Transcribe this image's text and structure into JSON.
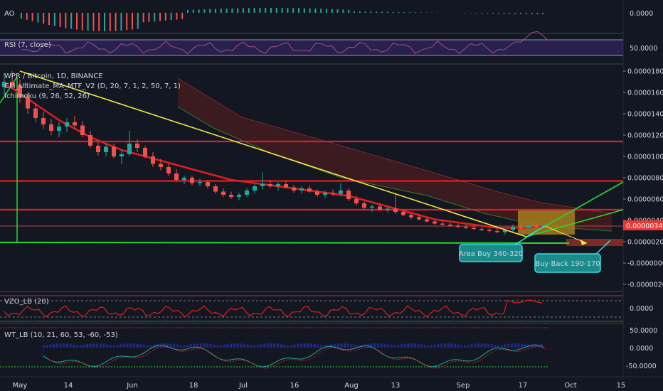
{
  "chart_data": {
    "type": "candlestick",
    "symbol_label": "WPR / Bitcoin, 1D, BINANCE",
    "indicators": [
      "CM_Ultimate_MA_MTF_V2 (D, 20, 7, 1, 2, 50, 7, 1)",
      "Ichimoku (9, 26, 52, 26)"
    ],
    "x_ticks": [
      "May",
      "14",
      "Jun",
      "18",
      "Jul",
      "16",
      "Aug",
      "13",
      "Sep",
      "17",
      "Oct",
      "15"
    ],
    "y_ticks": [
      "0.00001800",
      "0.00001600",
      "0.00001400",
      "0.00001200",
      "0.00001000",
      "0.00000800",
      "0.00000600",
      "0.00000400",
      "0.00000200",
      "-0.00000000",
      "-0.00000200"
    ],
    "ylim": [
      -2e-06,
      1.81e-05
    ],
    "last_price": "0.00000345",
    "support_resistance_levels": [
      1.14e-05,
      7.7e-06,
      5e-06,
      2e-06
    ],
    "ohlc": [
      [
        1.65e-05,
        1.78e-05,
        1.58e-05,
        1.7e-05
      ],
      [
        1.7e-05,
        1.8e-05,
        1.63e-05,
        1.67e-05
      ],
      [
        1.67e-05,
        1.72e-05,
        1.5e-05,
        1.55e-05
      ],
      [
        1.55e-05,
        1.6e-05,
        1.4e-05,
        1.45e-05
      ],
      [
        1.45e-05,
        1.5e-05,
        1.32e-05,
        1.36e-05
      ],
      [
        1.36e-05,
        1.42e-05,
        1.26e-05,
        1.3e-05
      ],
      [
        1.3e-05,
        1.35e-05,
        1.2e-05,
        1.24e-05
      ],
      [
        1.24e-05,
        1.32e-05,
        1.18e-05,
        1.28e-05
      ],
      [
        1.28e-05,
        1.36e-05,
        1.23e-05,
        1.32e-05
      ],
      [
        1.32e-05,
        1.38e-05,
        1.26e-05,
        1.29e-05
      ],
      [
        1.29e-05,
        1.33e-05,
        1.18e-05,
        1.2e-05
      ],
      [
        1.2e-05,
        1.24e-05,
        1.08e-05,
        1.1e-05
      ],
      [
        1.1e-05,
        1.14e-05,
        1.01e-05,
        1.04e-05
      ],
      [
        1.04e-05,
        1.12e-05,
        1e-05,
        1.09e-05
      ],
      [
        1.09e-05,
        1.12e-05,
        9.8e-06,
        1e-05
      ],
      [
        1e-05,
        1.06e-05,
        9.3e-06,
        1.02e-05
      ],
      [
        1.02e-05,
        1.24e-05,
        1e-05,
        1.12e-05
      ],
      [
        1.12e-05,
        1.16e-05,
        1.04e-05,
        1.08e-05
      ],
      [
        1.08e-05,
        1.1e-05,
        9.8e-06,
        1e-05
      ],
      [
        1e-05,
        1.04e-05,
        9e-06,
        9.3e-06
      ],
      [
        9.3e-06,
        9.8e-06,
        8.7e-06,
        9e-06
      ],
      [
        9e-06,
        9.3e-06,
        8.2e-06,
        8.4e-06
      ],
      [
        8.4e-06,
        8.8e-06,
        7.6e-06,
        7.8e-06
      ],
      [
        7.8e-06,
        8.2e-06,
        7.4e-06,
        8e-06
      ],
      [
        8e-06,
        8.2e-06,
        7.3e-06,
        7.5e-06
      ],
      [
        7.5e-06,
        7.9e-06,
        7.2e-06,
        7.6e-06
      ],
      [
        7.6e-06,
        7.8e-06,
        7e-06,
        7.2e-06
      ],
      [
        7.2e-06,
        7.4e-06,
        6.5e-06,
        6.7e-06
      ],
      [
        6.7e-06,
        7e-06,
        6.2e-06,
        6.4e-06
      ],
      [
        6.4e-06,
        6.7e-06,
        6e-06,
        6.2e-06
      ],
      [
        6.2e-06,
        6.6e-06,
        5.9e-06,
        6.4e-06
      ],
      [
        6.4e-06,
        7e-06,
        6.2e-06,
        6.8e-06
      ],
      [
        6.8e-06,
        7.4e-06,
        6.5e-06,
        7.2e-06
      ],
      [
        7.2e-06,
        8.5e-06,
        6.9e-06,
        7.4e-06
      ],
      [
        7.4e-06,
        7.8e-06,
        7e-06,
        7.2e-06
      ],
      [
        7.2e-06,
        7.6e-06,
        6.8e-06,
        7.4e-06
      ],
      [
        7.4e-06,
        7.7e-06,
        7e-06,
        7.1e-06
      ],
      [
        7.1e-06,
        7.3e-06,
        6.6e-06,
        6.8e-06
      ],
      [
        6.8e-06,
        7.2e-06,
        6.5e-06,
        7e-06
      ],
      [
        7e-06,
        7.3e-06,
        6.6e-06,
        6.7e-06
      ],
      [
        6.7e-06,
        6.9e-06,
        6.2e-06,
        6.4e-06
      ],
      [
        6.4e-06,
        6.8e-06,
        6.1e-06,
        6.6e-06
      ],
      [
        6.6e-06,
        6.9e-06,
        6.3e-06,
        6.5e-06
      ],
      [
        6.5e-06,
        7.5e-06,
        6.3e-06,
        6.8e-06
      ],
      [
        6.8e-06,
        7e-06,
        5.8e-06,
        6e-06
      ],
      [
        6e-06,
        6.3e-06,
        5.4e-06,
        5.6e-06
      ],
      [
        5.6e-06,
        5.8e-06,
        5e-06,
        5.2e-06
      ],
      [
        5.2e-06,
        5.5e-06,
        4.8e-06,
        5.3e-06
      ],
      [
        5.3e-06,
        5.6e-06,
        4.9e-06,
        5e-06
      ],
      [
        5e-06,
        5.3e-06,
        4.7e-06,
        5.1e-06
      ],
      [
        5.1e-06,
        6.5e-06,
        4.6e-06,
        4.8e-06
      ],
      [
        4.8e-06,
        5e-06,
        4.4e-06,
        4.5e-06
      ],
      [
        4.5e-06,
        4.7e-06,
        4.1e-06,
        4.3e-06
      ],
      [
        4.3e-06,
        4.6e-06,
        4e-06,
        4.1e-06
      ],
      [
        4.1e-06,
        4.3e-06,
        3.8e-06,
        3.9e-06
      ],
      [
        3.9e-06,
        4.1e-06,
        3.6e-06,
        3.7e-06
      ],
      [
        3.7e-06,
        4e-06,
        3.5e-06,
        3.6e-06
      ],
      [
        3.6e-06,
        3.8e-06,
        3.4e-06,
        3.5e-06
      ],
      [
        3.5e-06,
        3.7e-06,
        3.3e-06,
        3.4e-06
      ],
      [
        3.4e-06,
        3.6e-06,
        3.2e-06,
        3.3e-06
      ],
      [
        3.3e-06,
        3.5e-06,
        3.1e-06,
        3.2e-06
      ],
      [
        3.2e-06,
        3.4e-06,
        3e-06,
        3.1e-06
      ],
      [
        3.1e-06,
        3.3e-06,
        2.9e-06,
        3e-06
      ],
      [
        3e-06,
        3.2e-06,
        2.8e-06,
        2.9e-06
      ],
      [
        2.9e-06,
        3.2e-06,
        2.7e-06,
        3.1e-06
      ],
      [
        3.1e-06,
        3.6e-06,
        2.9e-06,
        3.4e-06
      ],
      [
        3.4e-06,
        3.8e-06,
        3.1e-06,
        3.3e-06
      ],
      [
        3.3e-06,
        3.7e-06,
        3.1e-06,
        3.5e-06
      ],
      [
        3.5e-06,
        3.8e-06,
        3.2e-06,
        3.4e-06
      ],
      [
        3.4e-06,
        3.7e-06,
        3.2e-06,
        3.5e-06
      ]
    ],
    "ma_red": [
      1.68e-05,
      1.64e-05,
      1.59e-05,
      1.54e-05,
      1.49e-05,
      1.44e-05,
      1.39e-05,
      1.34e-05,
      1.3e-05,
      1.26e-05,
      1.22e-05,
      1.18e-05,
      1.15e-05,
      1.12e-05,
      1.09e-05,
      1.06e-05,
      1.04e-05,
      1.02e-05,
      1e-05,
      9.8e-06,
      9.6e-06,
      9.4e-06,
      9.2e-06,
      9e-06,
      8.8e-06,
      8.6e-06,
      8.4e-06,
      8.2e-06,
      8e-06,
      7.8e-06,
      7.7e-06,
      7.6e-06,
      7.5e-06,
      7.4e-06,
      7.3e-06,
      7.2e-06,
      7.1e-06,
      7e-06,
      6.9e-06,
      6.8e-06,
      6.7e-06,
      6.6e-06,
      6.5e-06,
      6.4e-06,
      6.3e-06,
      6.1e-06,
      5.9e-06,
      5.7e-06,
      5.5e-06,
      5.3e-06,
      5.1e-06,
      4.9e-06,
      4.7e-06,
      4.5e-06,
      4.3e-06,
      4.1e-06,
      4e-06,
      3.9e-06,
      3.8e-06,
      3.7e-06,
      3.6e-06,
      3.5e-06,
      3.4e-06,
      3.3e-06,
      3.3e-06,
      3.3e-06,
      3.3e-06,
      3.3e-06,
      3.4e-06,
      3.4e-06
    ],
    "annotations": [
      "Area Buy 340-320",
      "Buy Back 190-170"
    ],
    "sub_panes": [
      {
        "name": "AO",
        "ticks": [
          "0.0000"
        ]
      },
      {
        "name": "RSI (7, close)",
        "ticks": [
          "50.0000"
        ]
      },
      {
        "name": "VZO_LB (20)",
        "ticks": [
          "0.0000"
        ]
      },
      {
        "name": "WT_LB (10, 21, 60, 53, -60, -53)",
        "ticks": [
          "50.0000",
          "0.0000",
          "-50.0000"
        ]
      }
    ],
    "colors": {
      "background": "#131722",
      "up": "#26a69a",
      "down": "#ef5350",
      "ma": "#e01e1e",
      "level": "#e01e1e",
      "trend": "#f5e642",
      "support": "#29d632",
      "callout_bg": "#1b8a8a",
      "callout_border": "#35e0e0"
    }
  }
}
